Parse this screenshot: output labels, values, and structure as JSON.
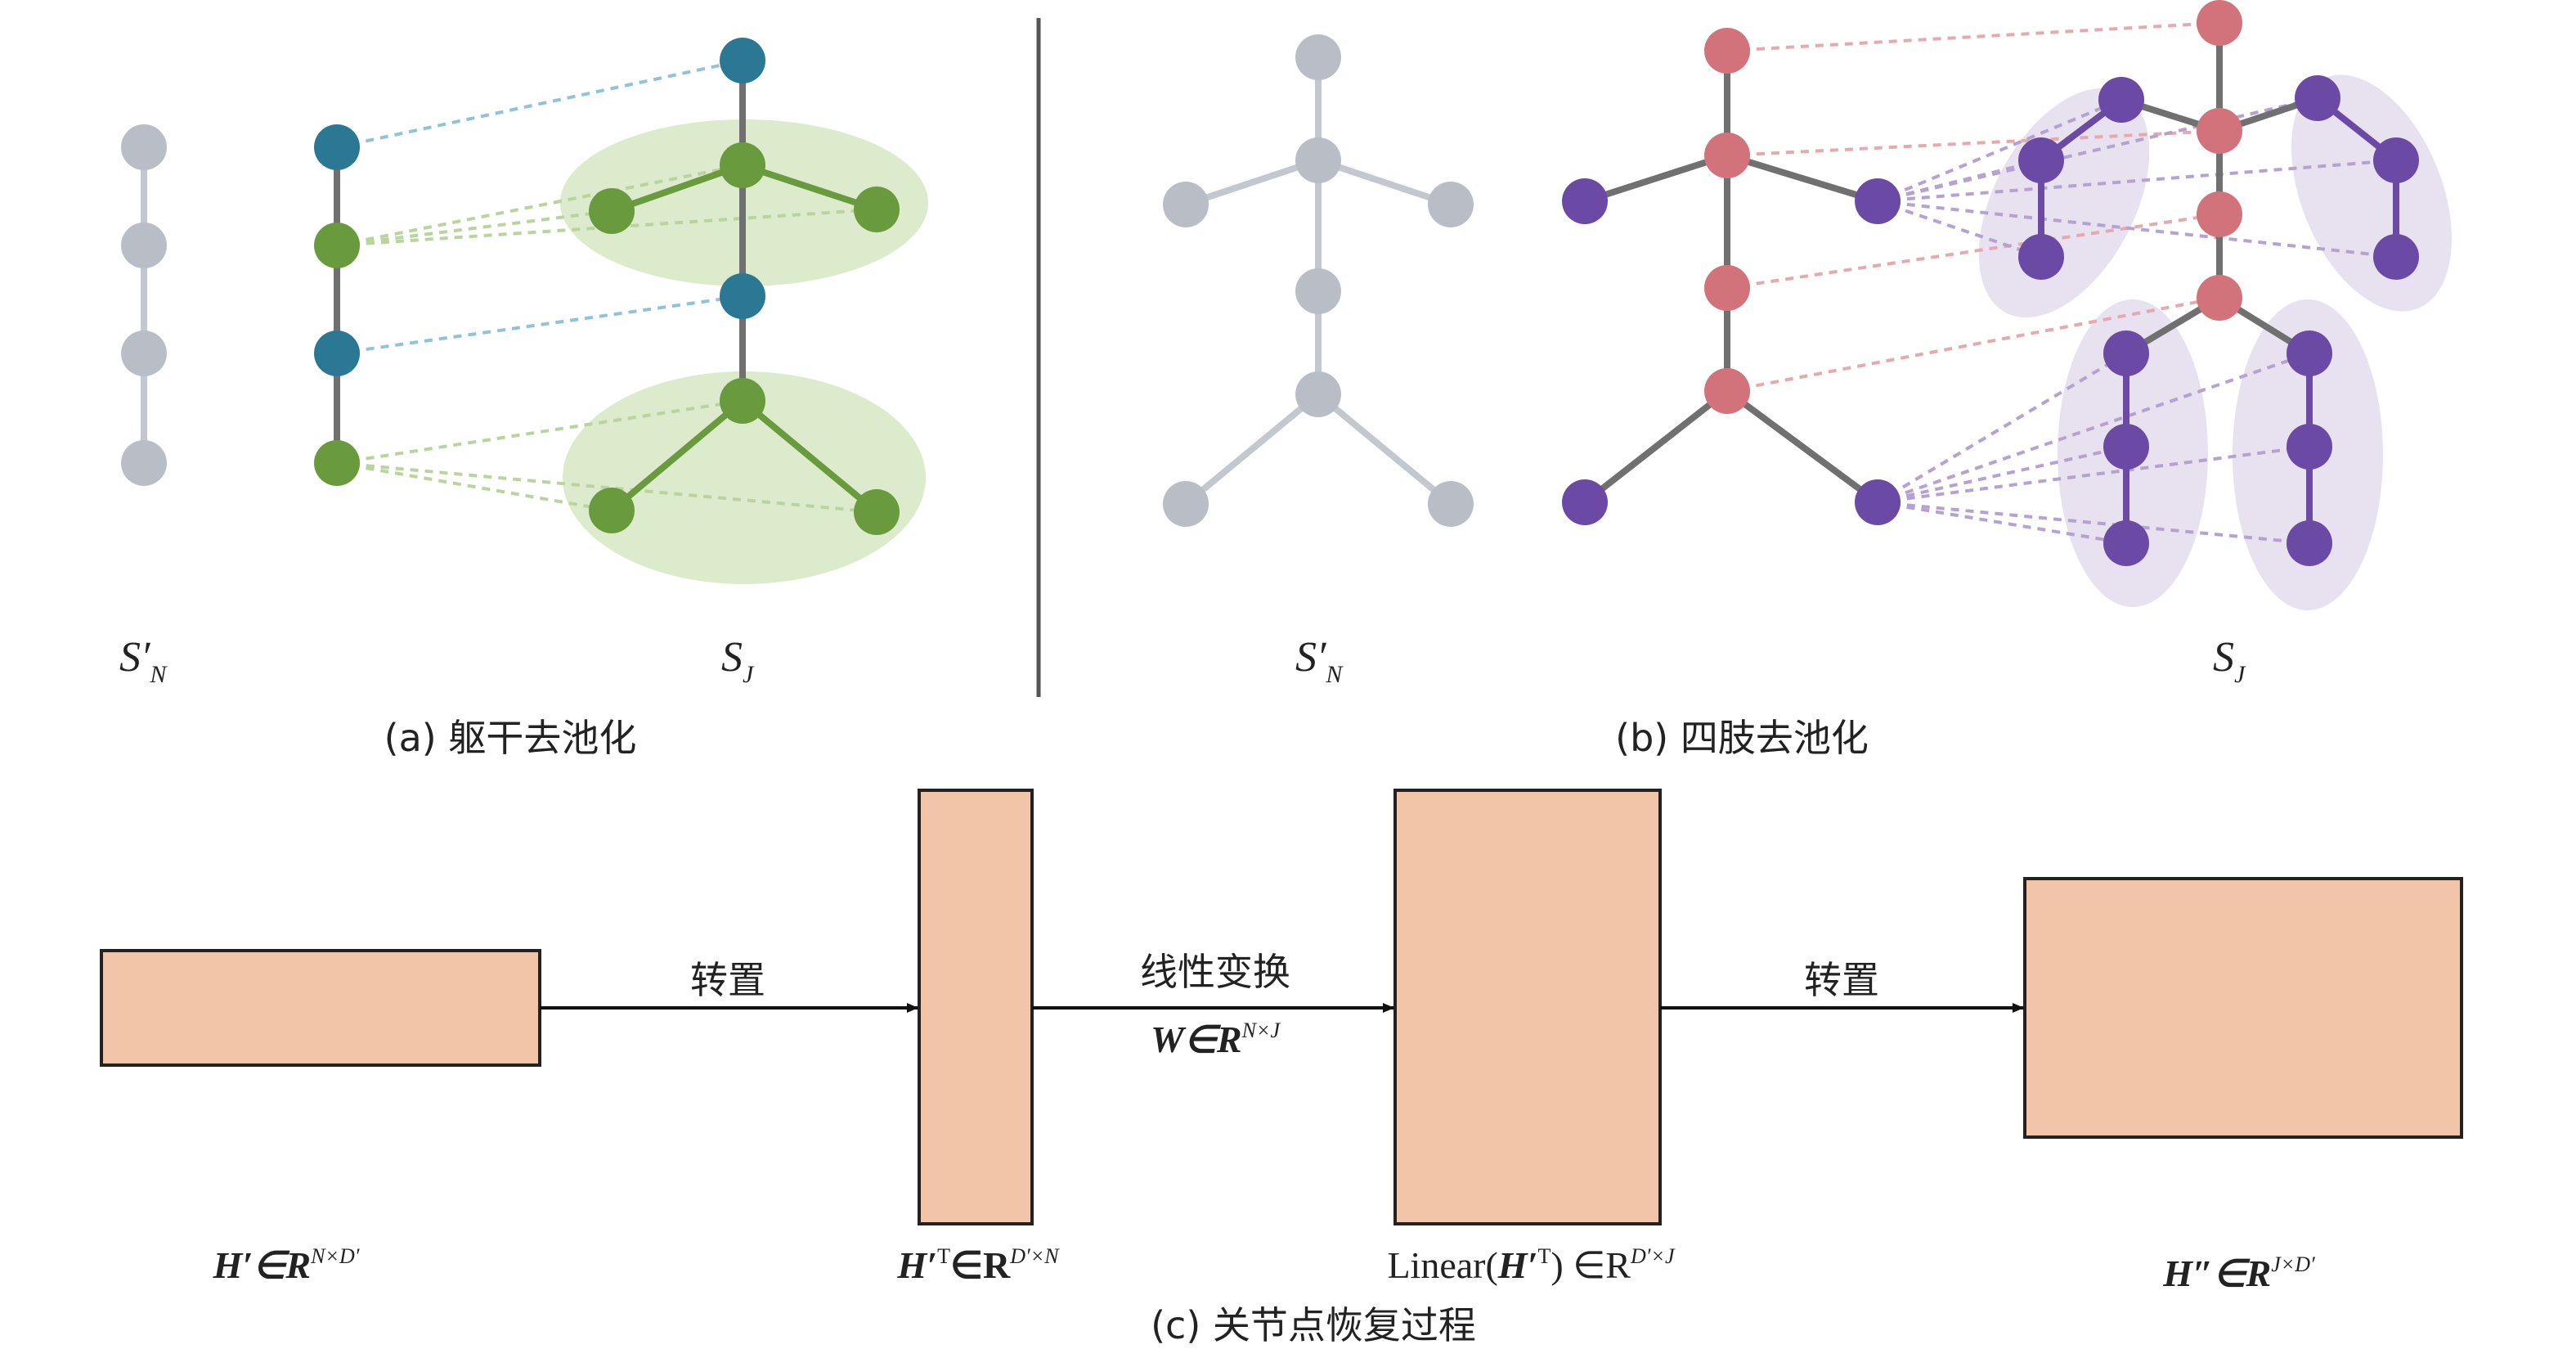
{
  "colors": {
    "gray": "#b9bec6",
    "gray_edge": "#c3c8cf",
    "teal": "#2b7895",
    "green": "#6a9a3e",
    "green_ellipse": "#dcebcb",
    "pink": "#d2737b",
    "purple": "#6b4aa6",
    "purple_ellipse": "#e8e1ef",
    "dark_edge": "#707070",
    "matrix_fill": "#f2c4a8",
    "divider": "#555555"
  },
  "panel_a": {
    "label_left": "S′",
    "label_left_sub": "N",
    "label_right": "S",
    "label_right_sub": "J",
    "caption": "(a) 躯干去池化"
  },
  "panel_b": {
    "label_left": "S′",
    "label_left_sub": "N",
    "label_right": "S",
    "label_right_sub": "J",
    "caption": "(b) 四肢去池化"
  },
  "panel_c": {
    "arrow1_label": "转置",
    "arrow2_label": "线性变换",
    "arrow2_formula": "W∈R",
    "arrow2_formula_sup": "N×J",
    "arrow3_label": "转置",
    "box1_label": "H′∈R",
    "box1_sup": "N×D′",
    "box2_label": "H′",
    "box2_sup_T": "T",
    "box2_rest": "∈R",
    "box2_sup": "D′×N",
    "box3_prefix": "Linear(",
    "box3_H": "H′",
    "box3_T": "T",
    "box3_rest": ") ∈R",
    "box3_sup": "D′×J",
    "box4_label": "H″∈R",
    "box4_sup": "J×D′",
    "caption": "(c) 关节点恢复过程"
  }
}
